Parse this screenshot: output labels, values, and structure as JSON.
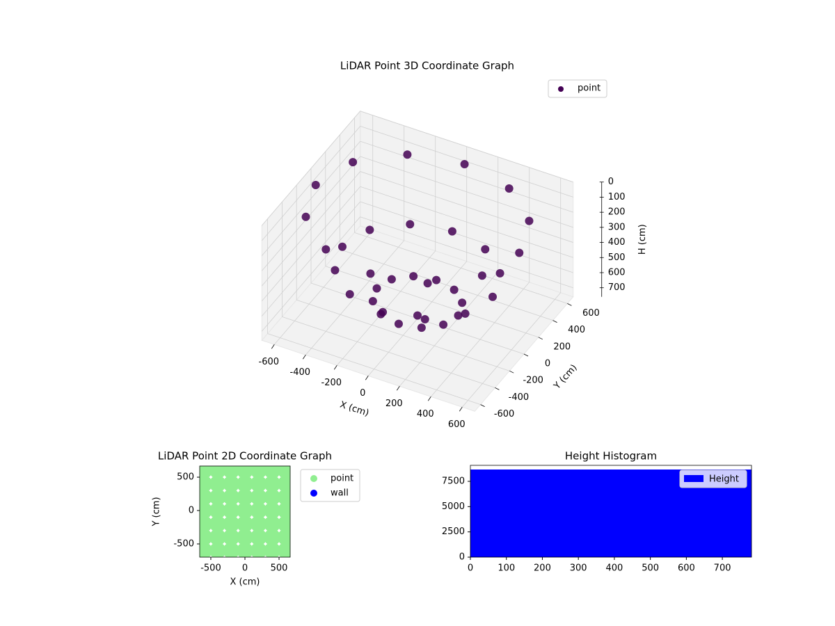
{
  "chart_data": [
    {
      "type": "scatter3d",
      "title": "LiDAR Point 3D Coordinate Graph",
      "x_label": "X (cm)",
      "y_label": "Y (cm)",
      "z_label": "H (cm)",
      "xlim": [
        -680,
        680
      ],
      "ylim": [
        -680,
        680
      ],
      "zlim": [
        0,
        760
      ],
      "z_inverted": true,
      "xticks": [
        -600,
        -400,
        -200,
        0,
        200,
        400,
        600
      ],
      "yticks": [
        -600,
        -400,
        -200,
        0,
        200,
        400,
        600
      ],
      "zticks": [
        0,
        100,
        200,
        300,
        400,
        500,
        600,
        700
      ],
      "grid": true,
      "legend": "upper right",
      "series": [
        {
          "name": "point",
          "color": "#440154",
          "x": [
            650,
            563,
            325,
            0,
            -325,
            -563,
            -650,
            -563,
            -325,
            0,
            325,
            563,
            480,
            416,
            240,
            0,
            -240,
            -416,
            -480,
            -416,
            -240,
            0,
            240,
            416,
            260,
            225,
            130,
            0,
            -130,
            -225,
            -260,
            -225,
            -130,
            0,
            130,
            225,
            0
          ],
          "y": [
            0,
            325,
            563,
            650,
            563,
            325,
            0,
            -325,
            -563,
            -650,
            -563,
            -325,
            0,
            240,
            416,
            480,
            416,
            240,
            0,
            -240,
            -416,
            -480,
            -416,
            -240,
            0,
            130,
            225,
            260,
            225,
            130,
            0,
            -130,
            -225,
            -260,
            -225,
            -130,
            0
          ],
          "z": [
            100,
            100,
            100,
            100,
            100,
            100,
            100,
            100,
            100,
            100,
            100,
            100,
            450,
            450,
            450,
            450,
            450,
            450,
            450,
            450,
            450,
            450,
            450,
            450,
            650,
            650,
            650,
            650,
            650,
            650,
            650,
            650,
            650,
            650,
            650,
            650,
            740
          ]
        }
      ]
    },
    {
      "type": "scatter",
      "title": "LiDAR Point 2D Coordinate Graph",
      "x_label": "X (cm)",
      "y_label": "Y (cm)",
      "xlim": [
        -663,
        663
      ],
      "ylim": [
        -698,
        667
      ],
      "xticks": [
        -500,
        0,
        500
      ],
      "yticks": [
        -500,
        0,
        500
      ],
      "legend": "outside right",
      "series": [
        {
          "name": "point",
          "color": "#90ee90",
          "x": [
            -600,
            -400,
            -200,
            0,
            200,
            400,
            600,
            -600,
            -400,
            -200,
            0,
            200,
            400,
            600,
            -600,
            -400,
            -200,
            0,
            200,
            400,
            600,
            -600,
            -400,
            -200,
            0,
            200,
            400,
            600,
            -600,
            -400,
            -200,
            0,
            200,
            400,
            600,
            -600,
            -400,
            -200,
            0,
            200,
            400,
            600,
            -600,
            -400,
            -200,
            0,
            200,
            400,
            600
          ],
          "y": [
            -600,
            -600,
            -600,
            -600,
            -600,
            -600,
            -600,
            -400,
            -400,
            -400,
            -400,
            -400,
            -400,
            -400,
            -200,
            -200,
            -200,
            -200,
            -200,
            -200,
            -200,
            0,
            0,
            0,
            0,
            0,
            0,
            0,
            200,
            200,
            200,
            200,
            200,
            200,
            200,
            400,
            400,
            400,
            400,
            400,
            400,
            400,
            600,
            600,
            600,
            600,
            600,
            600,
            600
          ]
        },
        {
          "name": "wall",
          "color": "#0000ff",
          "x": [],
          "y": []
        }
      ]
    },
    {
      "type": "histogram",
      "title": "Height Histogram",
      "xlim": [
        0,
        781
      ],
      "ylim": [
        0,
        9084
      ],
      "xticks": [
        0,
        100,
        200,
        300,
        400,
        500,
        600,
        700
      ],
      "yticks": [
        0,
        2500,
        5000,
        7500
      ],
      "legend": "upper right",
      "series": [
        {
          "name": "Height",
          "color": "#0000ff",
          "bins": [
            0,
            78,
            156,
            234,
            312,
            390,
            468,
            546,
            624,
            702,
            780
          ],
          "values": [
            8670,
            8670,
            8670,
            8670,
            8670,
            8670,
            8670,
            8670,
            8670,
            8670
          ]
        }
      ]
    }
  ]
}
